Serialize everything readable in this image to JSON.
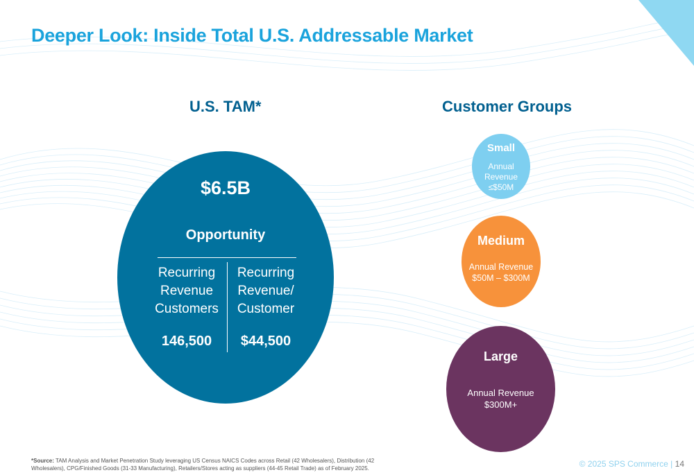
{
  "title": "Deeper Look: Inside Total U.S. Addressable Market",
  "tam": {
    "heading": "U.S. TAM*",
    "value": "$6.5B",
    "label": "Opportunity",
    "left_metric": {
      "label": "Recurring\nRevenue\nCustomers",
      "value": "146,500"
    },
    "right_metric": {
      "label": "Recurring\nRevenue/\nCustomer",
      "value": "$44,500"
    },
    "color": "#02729e"
  },
  "customer_groups": {
    "heading": "Customer Groups",
    "groups": [
      {
        "name": "Small",
        "description": "Annual\nRevenue\n≤$50M",
        "color": "#7ecff0"
      },
      {
        "name": "Medium",
        "description": "Annual Revenue\n$50M – $300M",
        "color": "#f7923b"
      },
      {
        "name": "Large",
        "description": "Annual Revenue\n$300M+",
        "color": "#6b3460"
      }
    ]
  },
  "source": {
    "label": "*Source:",
    "text": " TAM Analysis and Market Penetration Study leveraging US Census NAICS Codes across Retail (42 Wholesalers), Distribution (42 Wholesalers), CPG/Finished Goods (31-33 Manufacturing), Retailers/Stores acting as suppliers (44-45 Retail Trade) as of February 2025."
  },
  "footer": {
    "copyright": "© 2025 SPS Commerce | ",
    "page": "14"
  },
  "colors": {
    "title": "#1aa3dc",
    "heading": "#005f8f",
    "accent_light": "#8fd1ee"
  }
}
